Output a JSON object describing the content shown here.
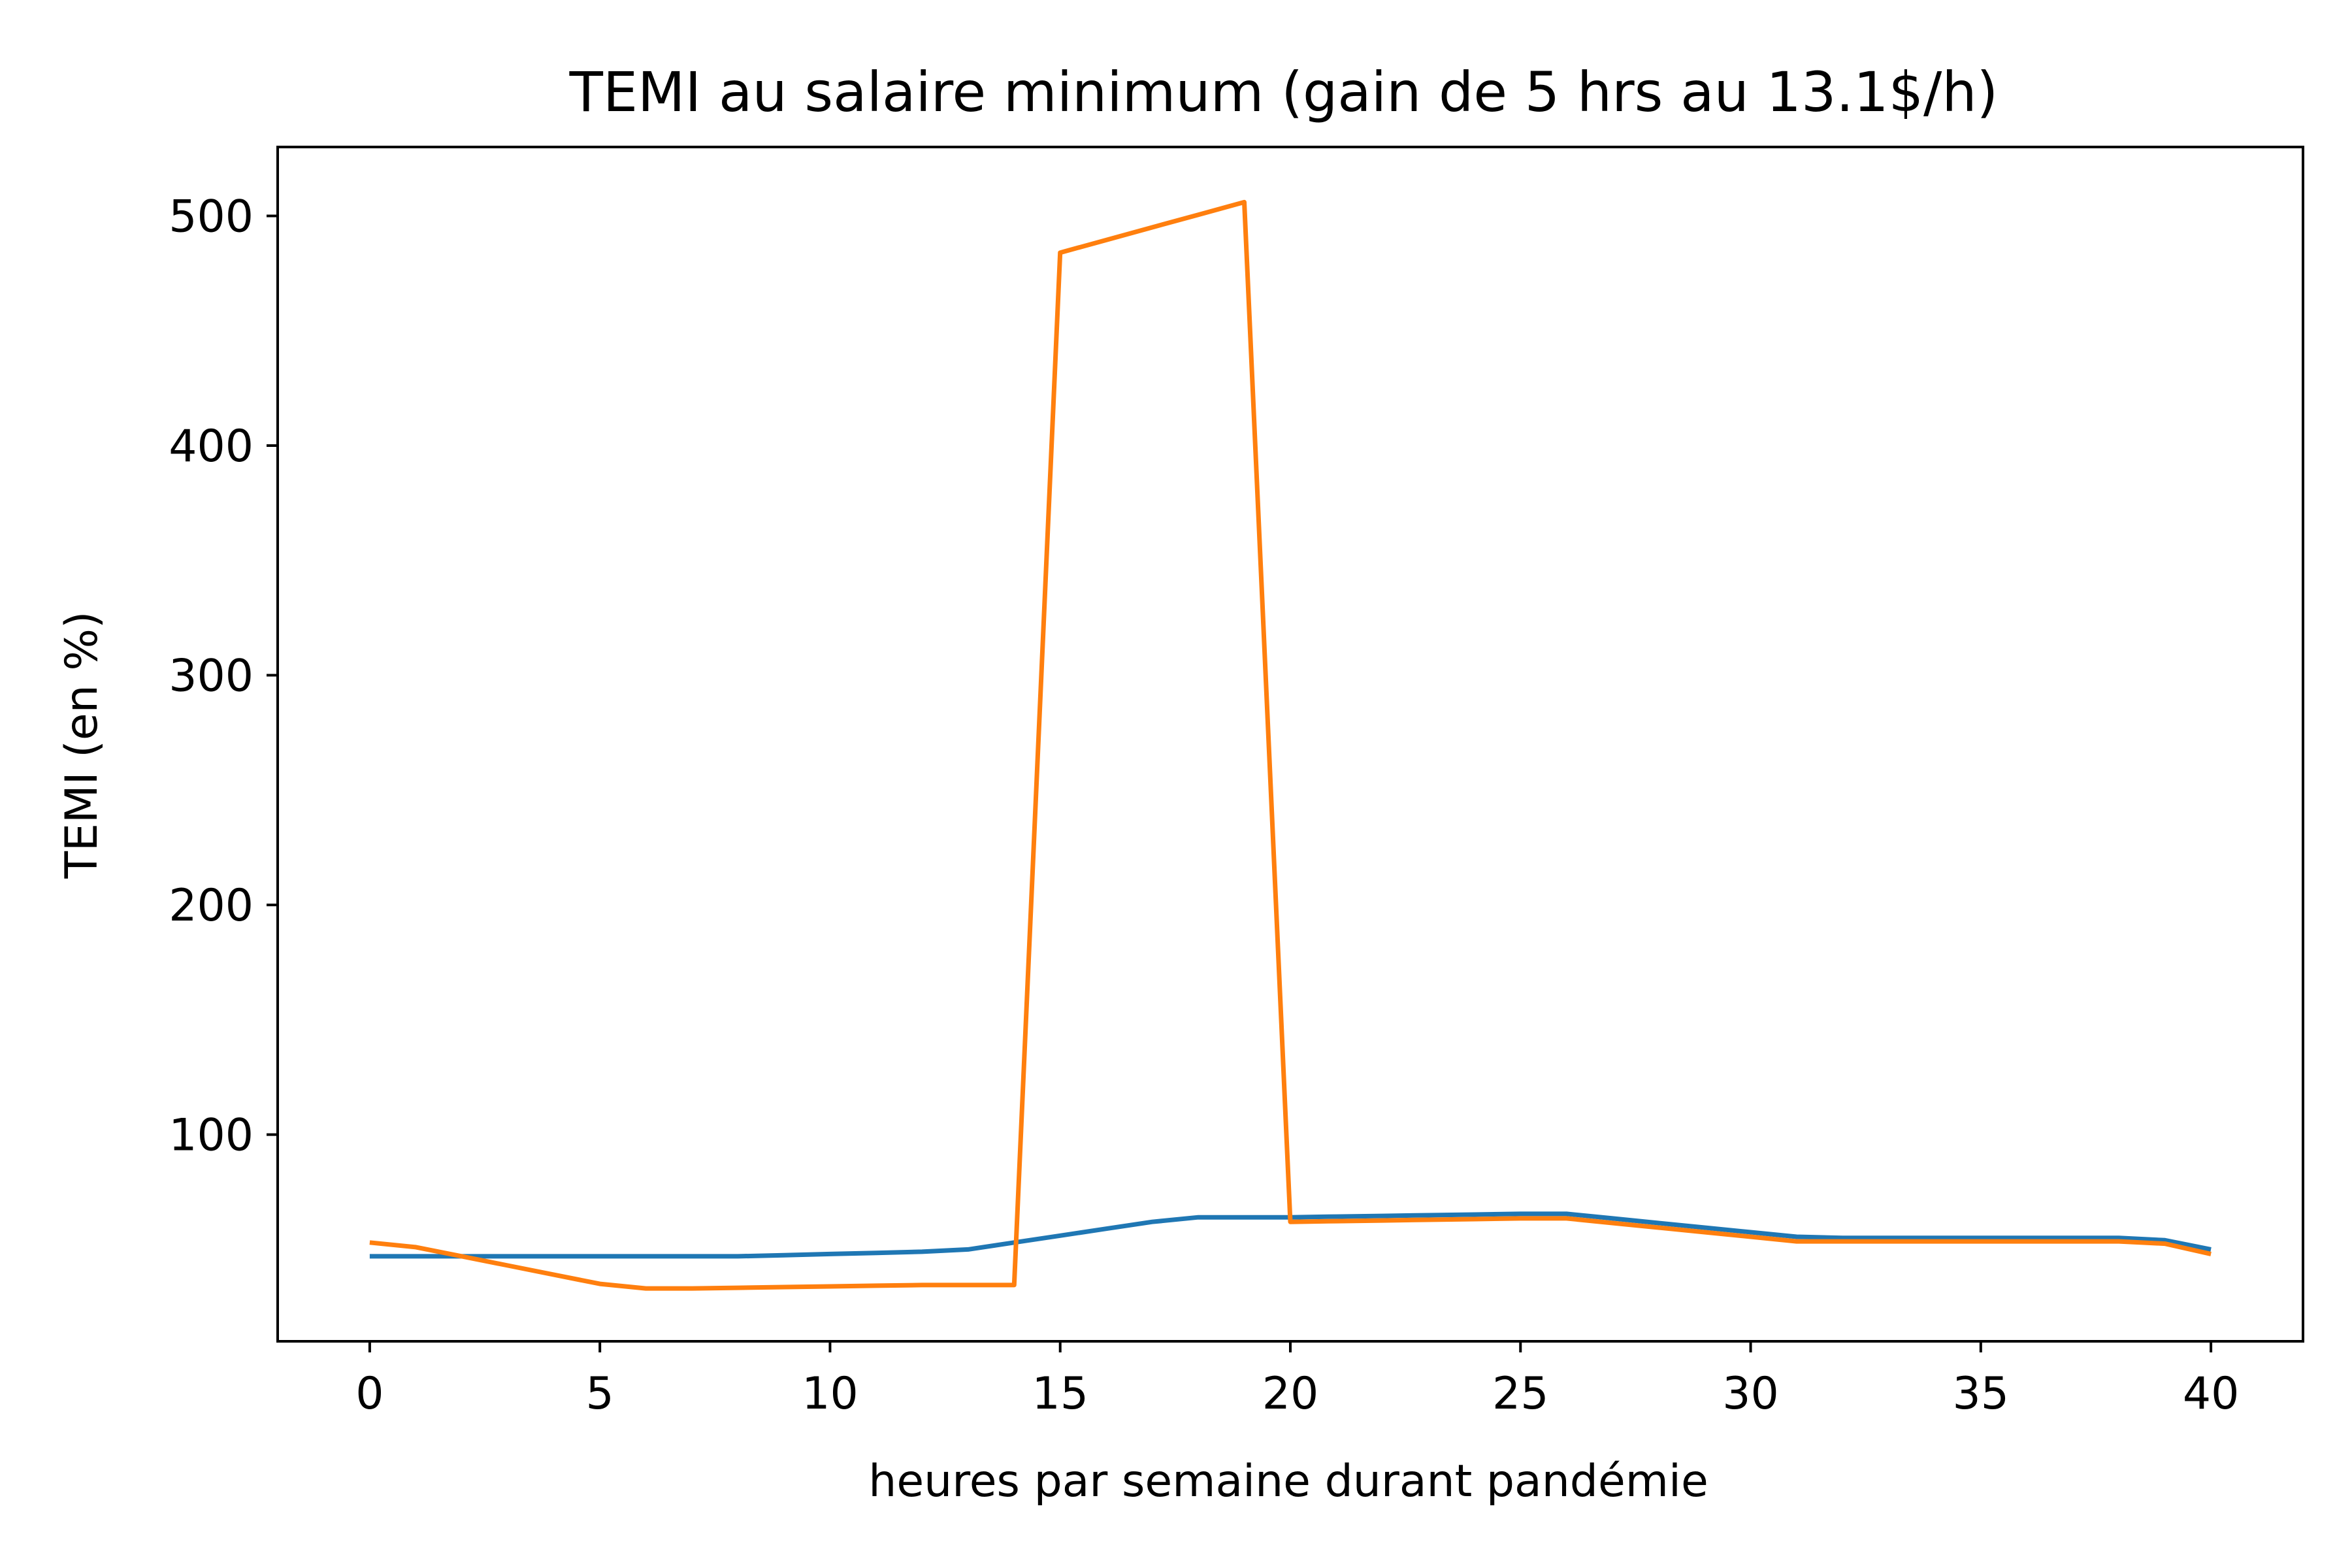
{
  "chart_data": {
    "type": "line",
    "title": "TEMI au salaire minimum (gain de 5 hrs au 13.1$/h)",
    "xlabel": "heures par semaine durant pandémie",
    "ylabel": "TEMI (en %)",
    "xlim": [
      -2,
      42
    ],
    "ylim": [
      10,
      530
    ],
    "grid": false,
    "xticks": [
      0,
      5,
      10,
      15,
      20,
      25,
      30,
      35,
      40
    ],
    "yticks": [
      100,
      200,
      300,
      400,
      500
    ],
    "x": [
      0,
      1,
      2,
      3,
      4,
      5,
      6,
      7,
      8,
      9,
      10,
      11,
      12,
      13,
      14,
      15,
      16,
      17,
      18,
      19,
      20,
      21,
      22,
      23,
      24,
      25,
      26,
      27,
      28,
      29,
      30,
      31,
      32,
      33,
      34,
      35,
      36,
      37,
      38,
      39,
      40
    ],
    "series": [
      {
        "color": "#1f77b4",
        "values": [
          47,
          47,
          47,
          47,
          47,
          47,
          47,
          47,
          47,
          47.5,
          48,
          48.5,
          49,
          50,
          53,
          56,
          59,
          62,
          64,
          64,
          64,
          64.3,
          64.6,
          64.9,
          65.2,
          65.5,
          65.5,
          63.5,
          61.5,
          59.5,
          57.5,
          55.5,
          55,
          55,
          55,
          55,
          55,
          55,
          55,
          54,
          50
        ]
      },
      {
        "color": "#ff7f0e",
        "values": [
          53,
          51,
          47,
          43,
          39,
          35,
          33,
          33,
          33.3,
          33.6,
          33.9,
          34.2,
          34.5,
          34.5,
          34.5,
          484,
          489.5,
          495,
          500.5,
          506,
          62,
          62.3,
          62.6,
          62.9,
          63.2,
          63.5,
          63.5,
          61.5,
          59.5,
          57.5,
          55.5,
          53.5,
          53.5,
          53.5,
          53.5,
          53.5,
          53.5,
          53.5,
          53.5,
          52.5,
          48
        ]
      }
    ]
  }
}
